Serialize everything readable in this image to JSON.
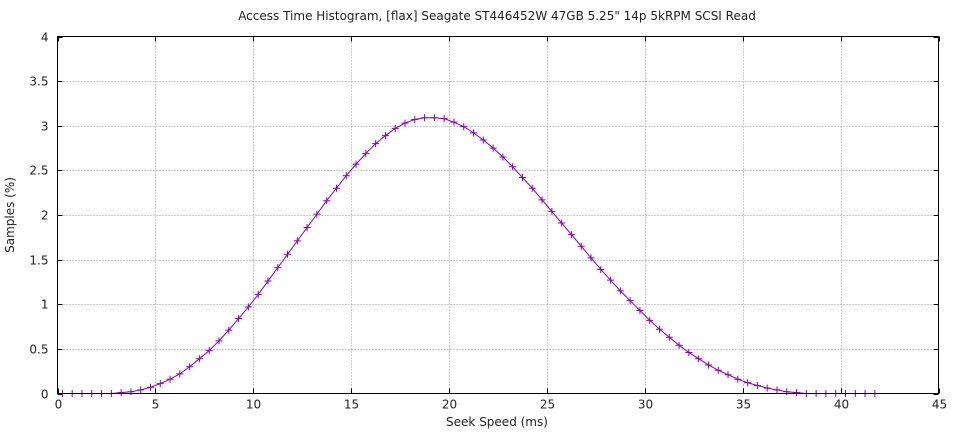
{
  "chart_data": {
    "type": "line",
    "title": "Access Time Histogram, [flax] Seagate ST446452W 47GB 5.25\" 14p 5kRPM SCSI Read",
    "xlabel": "Seek Speed (ms)",
    "ylabel": "Samples (%)",
    "xlim": [
      0,
      45
    ],
    "ylim": [
      0,
      4
    ],
    "xticks": [
      0,
      5,
      10,
      15,
      20,
      25,
      30,
      35,
      40,
      45
    ],
    "xtick_labels": [
      "0",
      "5",
      "10",
      "15",
      "20",
      "25",
      "30",
      "35",
      "40",
      "45"
    ],
    "yticks": [
      0,
      0.5,
      1,
      1.5,
      2,
      2.5,
      3,
      3.5,
      4
    ],
    "ytick_labels": [
      "0",
      "0.5",
      "1",
      "1.5",
      "2",
      "2.5",
      "3",
      "3.5",
      "4"
    ],
    "grid": true,
    "marker": "plus",
    "color": "#8a00bd",
    "series": [
      {
        "x": [
          0.25,
          0.75,
          1.25,
          1.75,
          2.25,
          2.75,
          3.25,
          3.75,
          4.25,
          4.75,
          5.25,
          5.75,
          6.25,
          6.75,
          7.25,
          7.75,
          8.25,
          8.75,
          9.25,
          9.75,
          10.25,
          10.75,
          11.25,
          11.75,
          12.25,
          12.75,
          13.25,
          13.75,
          14.25,
          14.75,
          15.25,
          15.75,
          16.25,
          16.75,
          17.25,
          17.75,
          18.25,
          18.75,
          19.25,
          19.75,
          20.25,
          20.75,
          21.25,
          21.75,
          22.25,
          22.75,
          23.25,
          23.75,
          24.25,
          24.75,
          25.25,
          25.75,
          26.25,
          26.75,
          27.25,
          27.75,
          28.25,
          28.75,
          29.25,
          29.75,
          30.25,
          30.75,
          31.25,
          31.75,
          32.25,
          32.75,
          33.25,
          33.75,
          34.25,
          34.75,
          35.25,
          35.75,
          36.25,
          36.75,
          37.25,
          37.75,
          38.25,
          38.75,
          39.25,
          39.75,
          40.25,
          40.75,
          41.25,
          41.75
        ],
        "y": [
          0.0,
          0.0,
          0.0,
          0.0,
          0.0,
          0.0,
          0.01,
          0.02,
          0.04,
          0.07,
          0.11,
          0.16,
          0.22,
          0.3,
          0.39,
          0.48,
          0.59,
          0.71,
          0.84,
          0.97,
          1.11,
          1.26,
          1.41,
          1.56,
          1.71,
          1.86,
          2.01,
          2.16,
          2.3,
          2.44,
          2.57,
          2.69,
          2.8,
          2.89,
          2.97,
          3.03,
          3.07,
          3.09,
          3.09,
          3.08,
          3.04,
          2.99,
          2.92,
          2.84,
          2.75,
          2.65,
          2.54,
          2.42,
          2.3,
          2.17,
          2.04,
          1.91,
          1.78,
          1.65,
          1.52,
          1.39,
          1.27,
          1.15,
          1.04,
          0.93,
          0.82,
          0.72,
          0.63,
          0.54,
          0.46,
          0.39,
          0.32,
          0.26,
          0.21,
          0.16,
          0.12,
          0.09,
          0.06,
          0.04,
          0.02,
          0.01,
          0.0,
          0.0,
          0.0,
          0.0,
          0.0,
          0.0,
          0.0,
          0.0
        ]
      }
    ]
  }
}
